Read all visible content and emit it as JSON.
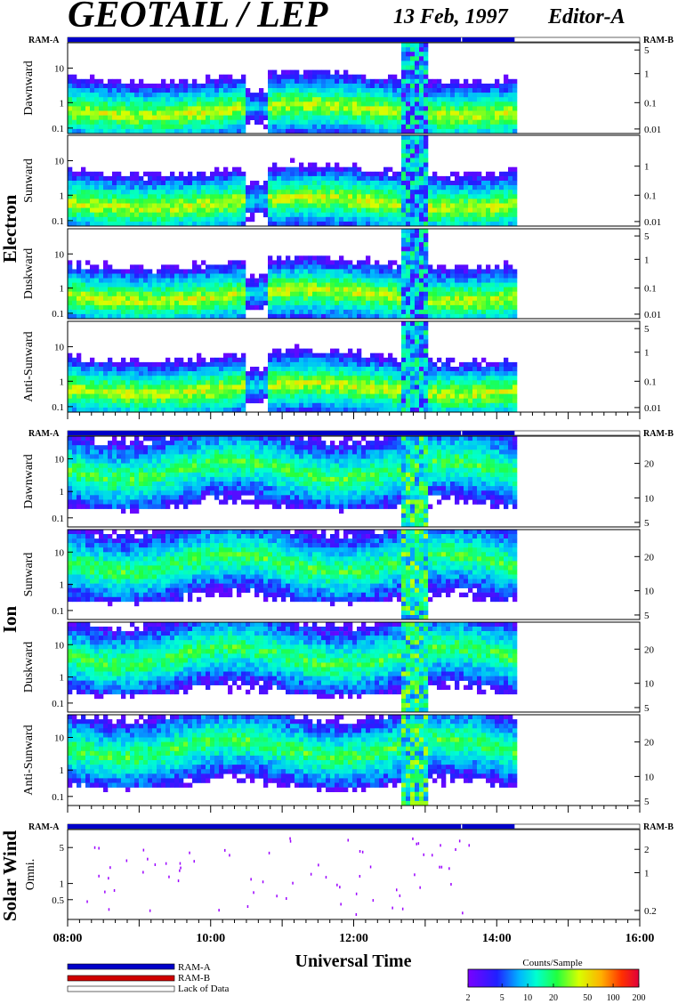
{
  "header": {
    "title": "GEOTAIL / LEP",
    "date": "13 Feb, 1997",
    "editor": "Editor-A"
  },
  "groups": [
    {
      "label": "Electron"
    },
    {
      "label": "Ion"
    },
    {
      "label": "Solar Wind"
    }
  ],
  "ram_labels": {
    "a": "RAM-A",
    "b": "RAM-B"
  },
  "legend": {
    "items": [
      {
        "label": "RAM-A",
        "color": "#0000c8"
      },
      {
        "label": "RAM-B",
        "color": "#d00000"
      },
      {
        "label": "Lack of Data",
        "color": "#ffffff"
      }
    ]
  },
  "colorbar": {
    "title": "Counts/Sample",
    "ticks": [
      "2",
      "5",
      "10",
      "20",
      "50",
      "100",
      "200"
    ],
    "scale": "log",
    "range": [
      2,
      200
    ]
  },
  "chart_data": {
    "type": "heatmap",
    "xlabel": "Universal Time",
    "xlim": [
      "08:00",
      "16:00"
    ],
    "x_ticks": [
      "08:00",
      "10:00",
      "12:00",
      "14:00",
      "16:00"
    ],
    "data_end": "14:15",
    "ram_a_periods": [
      [
        "08:00",
        "13:30"
      ],
      [
        "13:31",
        "14:15"
      ]
    ],
    "panels": [
      {
        "group": "Electron",
        "ylabel": "Dawnward",
        "y_ticks": [
          "10",
          "1",
          "0.1"
        ],
        "right_ticks": [
          "5",
          "1",
          "0.1",
          "0.01"
        ]
      },
      {
        "group": "Electron",
        "ylabel": "Sunward",
        "y_ticks": [
          "10",
          "1",
          "0.1"
        ],
        "right_ticks": [
          "1",
          "0.1",
          "0.01"
        ]
      },
      {
        "group": "Electron",
        "ylabel": "Duskward",
        "y_ticks": [
          "10",
          "1",
          "0.1"
        ],
        "right_ticks": [
          "5",
          "1",
          "0.1",
          "0.01"
        ]
      },
      {
        "group": "Electron",
        "ylabel": "Anti-Sunward",
        "y_ticks": [
          "10",
          "1",
          "0.1"
        ],
        "right_ticks": [
          "5",
          "1",
          "0.1",
          "0.01"
        ]
      },
      {
        "group": "Ion",
        "ylabel": "Dawnward",
        "y_ticks": [
          "10",
          "1",
          "0.1"
        ],
        "right_ticks": [
          "20",
          "10",
          "5"
        ]
      },
      {
        "group": "Ion",
        "ylabel": "Sunward",
        "y_ticks": [
          "10",
          "1",
          "0.1"
        ],
        "right_ticks": [
          "20",
          "10",
          "5"
        ]
      },
      {
        "group": "Ion",
        "ylabel": "Duskward",
        "y_ticks": [
          "10",
          "1",
          "0.1"
        ],
        "right_ticks": [
          "20",
          "10",
          "5"
        ]
      },
      {
        "group": "Ion",
        "ylabel": "Anti-Sunward",
        "y_ticks": [
          "10",
          "1",
          "0.1"
        ],
        "right_ticks": [
          "20",
          "10",
          "5"
        ]
      },
      {
        "group": "Solar Wind",
        "ylabel": "Omni.",
        "y_ticks": [
          "5",
          "1",
          "0.5"
        ],
        "right_ticks": [
          "2",
          "1",
          "0.2"
        ]
      }
    ]
  }
}
